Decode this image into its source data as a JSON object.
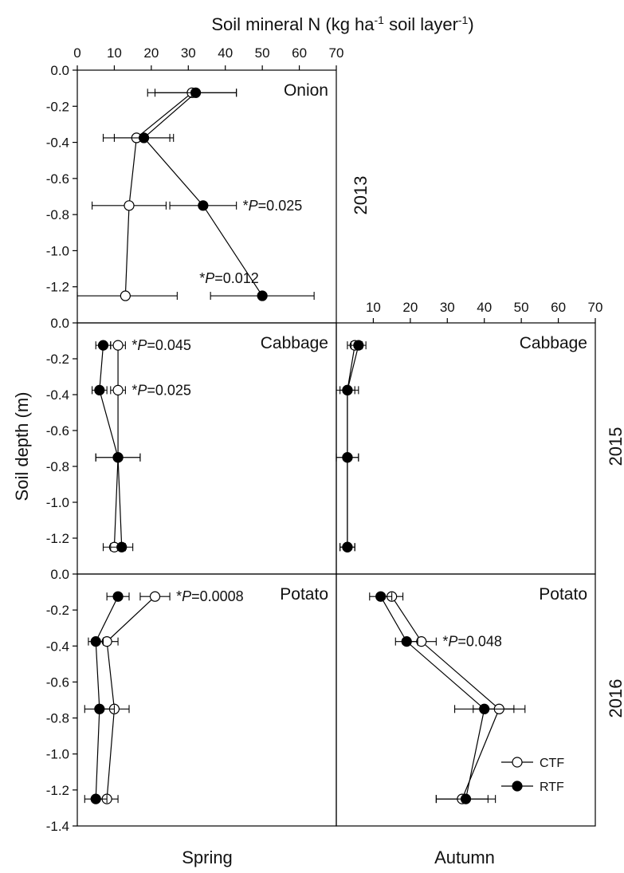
{
  "title_top": "Soil mineral N (kg ha⁻¹ soil layer⁻¹)",
  "ylabel": "Soil depth (m)",
  "col_labels": [
    "Spring",
    "Autumn"
  ],
  "year_labels": [
    "2013",
    "2015",
    "2016"
  ],
  "legend": {
    "ctf": "CTF",
    "rtf": "RTF"
  },
  "colors": {
    "ctf_fill": "#ffffff",
    "rtf_fill": "#000000",
    "line": "#000000"
  },
  "chart_data": [
    {
      "type": "line",
      "panel": "2013 Spring",
      "crop": "Onion",
      "xlim": [
        0,
        70
      ],
      "ylim": [
        -1.4,
        0
      ],
      "x_ticks": [
        0,
        10,
        20,
        30,
        40,
        50,
        60,
        70
      ],
      "y_ticks": [
        0.0,
        -0.2,
        -0.4,
        -0.6,
        -0.8,
        -1.0,
        -1.2
      ],
      "depths": [
        -0.125,
        -0.375,
        -0.75,
        -1.25
      ],
      "series": [
        {
          "name": "CTF",
          "marker": "open",
          "values": [
            31,
            16,
            14,
            13
          ],
          "errors": [
            12,
            9,
            10,
            14
          ]
        },
        {
          "name": "RTF",
          "marker": "filled",
          "values": [
            32,
            18,
            34,
            50
          ],
          "errors": [
            11,
            8,
            9,
            14
          ]
        }
      ],
      "annotations": [
        {
          "text": "*P=0.025",
          "depth": -0.75
        },
        {
          "text": "*P=0.012",
          "depth": -1.25
        }
      ]
    },
    {
      "type": "line",
      "panel": "2015 Spring",
      "crop": "Cabbage",
      "xlim": [
        0,
        70
      ],
      "ylim": [
        -1.4,
        0
      ],
      "y_ticks": [
        0.0,
        -0.2,
        -0.4,
        -0.6,
        -0.8,
        -1.0,
        -1.2
      ],
      "depths": [
        -0.125,
        -0.375,
        -0.75,
        -1.25
      ],
      "series": [
        {
          "name": "CTF",
          "marker": "open",
          "values": [
            11,
            11,
            11,
            10
          ],
          "errors": [
            2,
            2,
            6,
            3
          ]
        },
        {
          "name": "RTF",
          "marker": "filled",
          "values": [
            7,
            6,
            11,
            12
          ],
          "errors": [
            2,
            2,
            6,
            3
          ]
        }
      ],
      "annotations": [
        {
          "text": "*P=0.045",
          "depth": -0.125
        },
        {
          "text": "*P=0.025",
          "depth": -0.375
        }
      ]
    },
    {
      "type": "line",
      "panel": "2015 Autumn",
      "crop": "Cabbage",
      "xlim": [
        0,
        70
      ],
      "ylim": [
        -1.4,
        0
      ],
      "x_ticks": [
        10,
        20,
        30,
        40,
        50,
        60,
        70
      ],
      "depths": [
        -0.125,
        -0.375,
        -0.75,
        -1.25
      ],
      "series": [
        {
          "name": "CTF",
          "marker": "open",
          "values": [
            5,
            3,
            3,
            3
          ],
          "errors": [
            2,
            3,
            3,
            2
          ]
        },
        {
          "name": "RTF",
          "marker": "filled",
          "values": [
            6,
            3,
            3,
            3
          ],
          "errors": [
            2,
            2,
            3,
            2
          ]
        }
      ],
      "annotations": []
    },
    {
      "type": "line",
      "panel": "2016 Spring",
      "crop": "Potato",
      "xlim": [
        0,
        70
      ],
      "ylim": [
        -1.4,
        0
      ],
      "y_ticks": [
        0.0,
        -0.2,
        -0.4,
        -0.6,
        -0.8,
        -1.0,
        -1.2,
        -1.4
      ],
      "depths": [
        -0.125,
        -0.375,
        -0.75,
        -1.25
      ],
      "series": [
        {
          "name": "CTF",
          "marker": "open",
          "values": [
            21,
            8,
            10,
            8
          ],
          "errors": [
            4,
            3,
            4,
            3
          ]
        },
        {
          "name": "RTF",
          "marker": "filled",
          "values": [
            11,
            5,
            6,
            5
          ],
          "errors": [
            3,
            2,
            4,
            3
          ]
        }
      ],
      "annotations": [
        {
          "text": "*P=0.0008",
          "depth": -0.125
        }
      ]
    },
    {
      "type": "line",
      "panel": "2016 Autumn",
      "crop": "Potato",
      "xlim": [
        0,
        70
      ],
      "ylim": [
        -1.4,
        0
      ],
      "depths": [
        -0.125,
        -0.375,
        -0.75,
        -1.25
      ],
      "series": [
        {
          "name": "CTF",
          "marker": "open",
          "values": [
            15,
            23,
            44,
            34
          ],
          "errors": [
            3,
            4,
            7,
            7
          ]
        },
        {
          "name": "RTF",
          "marker": "filled",
          "values": [
            12,
            19,
            40,
            35
          ],
          "errors": [
            3,
            3,
            8,
            8
          ]
        }
      ],
      "annotations": [
        {
          "text": "*P=0.048",
          "depth": -0.375
        }
      ],
      "legend_position": "bottom-right"
    }
  ]
}
